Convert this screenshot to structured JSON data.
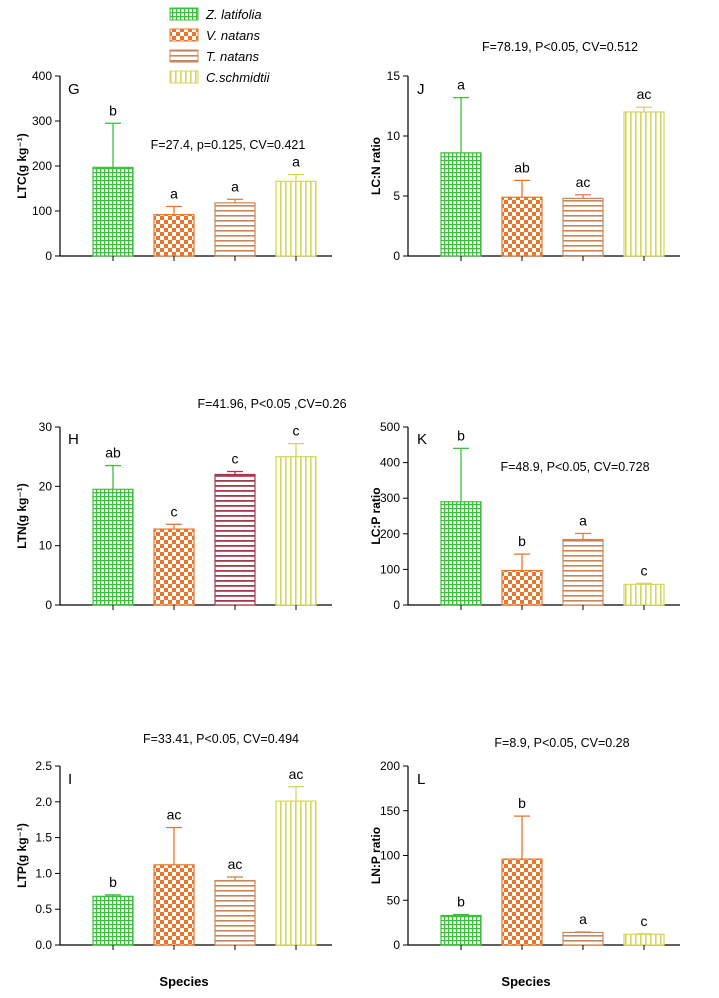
{
  "colors": {
    "Z. latifolia": "#3fbf3f",
    "V. natans": "#e8772e",
    "T. natans": "#c8855a",
    "T. natans (H)": "#a33a4e",
    "C.schmidtii": "#d6d65c"
  },
  "legend": {
    "placement": "top-center",
    "entries": [
      {
        "name": "Z. latifolia",
        "pattern": "grid"
      },
      {
        "name": " V. natans",
        "pattern": "checker"
      },
      {
        "name": "T. natans",
        "pattern": "hlines"
      },
      {
        "name": "C.schmidtii",
        "pattern": "vlines"
      }
    ]
  },
  "x_title": "Species",
  "chart_data": [
    {
      "type": "bar",
      "panel": "G",
      "ylabel": "LTC(g kg⁻¹)",
      "ylim": [
        0,
        400
      ],
      "yticks": [
        "0",
        "100",
        "200",
        "300",
        "400"
      ],
      "annotation": "F=27.4,  p=0.125, CV=0.421",
      "series": [
        {
          "name": "Z. latifolia",
          "value": 197,
          "error": 98,
          "label": "b"
        },
        {
          "name": "V. natans",
          "value": 92,
          "error": 18,
          "label": "a"
        },
        {
          "name": "T. natans",
          "value": 118,
          "error": 8,
          "label": "a"
        },
        {
          "name": "C.schmidtii",
          "value": 166,
          "error": 15,
          "label": "a"
        }
      ]
    },
    {
      "type": "bar",
      "panel": "J",
      "ylabel": "LC:N ratio",
      "ylim": [
        0,
        15
      ],
      "yticks": [
        "0",
        "5",
        "10",
        "15"
      ],
      "annotation": "F=78.19, P<0.05, CV=0.512",
      "series": [
        {
          "name": "Z. latifolia",
          "value": 8.6,
          "error": 4.6,
          "label": "a"
        },
        {
          "name": "V. natans",
          "value": 4.9,
          "error": 1.4,
          "label": "ab"
        },
        {
          "name": "T. natans",
          "value": 4.8,
          "error": 0.3,
          "label": "ac"
        },
        {
          "name": "C.schmidtii",
          "value": 12.0,
          "error": 0.4,
          "label": "ac"
        }
      ]
    },
    {
      "type": "bar",
      "panel": "H",
      "ylabel": "LTN(g kg⁻¹)",
      "ylim": [
        0,
        30
      ],
      "yticks": [
        "0",
        "10",
        "20",
        "30"
      ],
      "annotation": "F=41.96,  P<0.05 ,CV=0.26",
      "series": [
        {
          "name": "Z. latifolia",
          "value": 19.5,
          "error": 4.0,
          "label": "ab"
        },
        {
          "name": "V. natans",
          "value": 12.8,
          "error": 0.8,
          "label": "c"
        },
        {
          "name": "T. natans",
          "value": 22.0,
          "error": 0.5,
          "label": "c"
        },
        {
          "name": "C.schmidtii",
          "value": 25.0,
          "error": 2.2,
          "label": "c"
        }
      ]
    },
    {
      "type": "bar",
      "panel": "K",
      "ylabel": "LC:P ratio",
      "ylim": [
        0,
        500
      ],
      "yticks": [
        "0",
        "100",
        "200",
        "300",
        "400",
        "500"
      ],
      "annotation": "F=48.9, P<0.05, CV=0.728",
      "series": [
        {
          "name": "Z. latifolia",
          "value": 290,
          "error": 150,
          "label": "b"
        },
        {
          "name": "V. natans",
          "value": 97,
          "error": 46,
          "label": "b"
        },
        {
          "name": "T. natans",
          "value": 184,
          "error": 17,
          "label": "a"
        },
        {
          "name": "C.schmidtii",
          "value": 58,
          "error": 3,
          "label": "c"
        }
      ]
    },
    {
      "type": "bar",
      "panel": "I",
      "ylabel": "LTP(g kg⁻¹)",
      "ylim": [
        0,
        2.5
      ],
      "yticks": [
        "0.0",
        "0.5",
        "1.0",
        "1.5",
        "2.0",
        "2.5"
      ],
      "annotation": "F=33.41, P<0.05, CV=0.494",
      "series": [
        {
          "name": "Z. latifolia",
          "value": 0.68,
          "error": 0.02,
          "label": "b"
        },
        {
          "name": "V. natans",
          "value": 1.12,
          "error": 0.52,
          "label": "ac"
        },
        {
          "name": "T. natans",
          "value": 0.9,
          "error": 0.05,
          "label": "ac"
        },
        {
          "name": "C.schmidtii",
          "value": 2.01,
          "error": 0.2,
          "label": "ac"
        }
      ]
    },
    {
      "type": "bar",
      "panel": "L",
      "ylabel": "LN:P ratio",
      "ylim": [
        0,
        200
      ],
      "yticks": [
        "0",
        "50",
        "100",
        "150",
        "200"
      ],
      "annotation": "F=8.9, P<0.05, CV=0.28",
      "series": [
        {
          "name": "Z. latifolia",
          "value": 33,
          "error": 1,
          "label": "b"
        },
        {
          "name": "V. natans",
          "value": 96,
          "error": 48,
          "label": "b"
        },
        {
          "name": "T. natans",
          "value": 14,
          "error": 0.5,
          "label": "a"
        },
        {
          "name": "C.schmidtii",
          "value": 12,
          "error": 0.5,
          "label": "c"
        }
      ]
    }
  ]
}
